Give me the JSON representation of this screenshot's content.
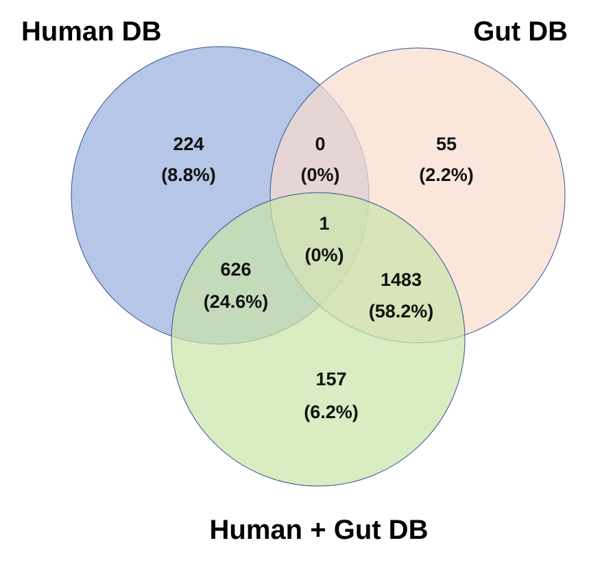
{
  "sets": {
    "human": {
      "title": "Human DB",
      "fill": "#9db3de",
      "stroke": "#2f4f8f"
    },
    "gut": {
      "title": "Gut DB",
      "fill": "#f9dccd",
      "stroke": "#2f4f8f"
    },
    "combined": {
      "title": "Human + Gut  DB",
      "fill": "#c9e4a8",
      "stroke": "#2f4f8f"
    }
  },
  "regions": {
    "human_only": {
      "count": "224",
      "percent": "(8.8%)"
    },
    "human_gut": {
      "count": "0",
      "percent": "(0%)"
    },
    "gut_only": {
      "count": "55",
      "percent": "(2.2%)"
    },
    "all_three": {
      "count": "1",
      "percent": "(0%)"
    },
    "human_combined": {
      "count": "626",
      "percent": "(24.6%)"
    },
    "gut_combined": {
      "count": "1483",
      "percent": "(58.2%)"
    },
    "combined_only": {
      "count": "157",
      "percent": "(6.2%)"
    }
  }
}
